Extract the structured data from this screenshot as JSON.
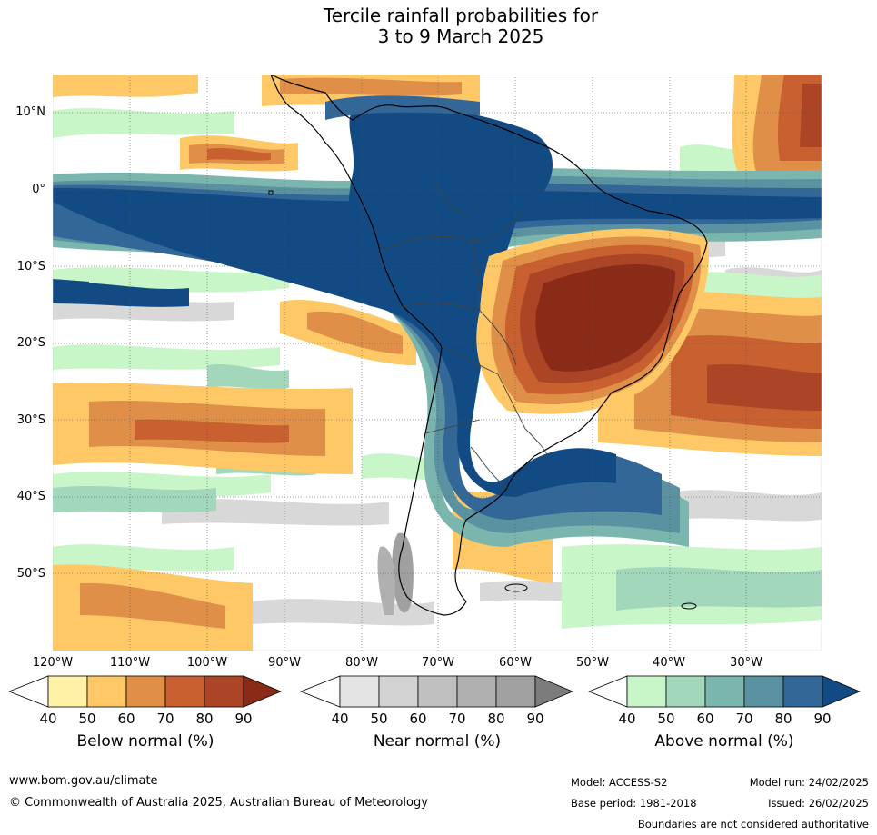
{
  "title": {
    "line1": "Tercile rainfall probabilities for",
    "line2": "3 to 9 March 2025"
  },
  "map": {
    "lat_labels": [
      "10°N",
      "0°",
      "10°S",
      "20°S",
      "30°S",
      "40°S",
      "50°S"
    ],
    "lon_labels": [
      "120°W",
      "110°W",
      "100°W",
      "90°W",
      "80°W",
      "70°W",
      "60°W",
      "50°W",
      "40°W",
      "30°W"
    ]
  },
  "legends": [
    {
      "caption": "Below normal (%)",
      "ticks": [
        "40",
        "50",
        "60",
        "70",
        "80",
        "90"
      ],
      "colors": [
        "#fff1a6",
        "#fdc865",
        "#df8f47",
        "#c8612f",
        "#ab4525",
        "#8a2b17"
      ]
    },
    {
      "caption": "Near normal (%)",
      "ticks": [
        "40",
        "50",
        "60",
        "70",
        "80",
        "90"
      ],
      "colors": [
        "#e4e4e4",
        "#d2d2d2",
        "#c0c0c0",
        "#b0b0b0",
        "#a0a0a0",
        "#7c7c7c"
      ]
    },
    {
      "caption": "Above normal (%)",
      "ticks": [
        "40",
        "50",
        "60",
        "70",
        "80",
        "90"
      ],
      "colors": [
        "#c8f6c8",
        "#a2d7bb",
        "#7ab6ae",
        "#5a92a2",
        "#336797",
        "#124a83"
      ]
    }
  ],
  "footer": {
    "website": "www.bom.gov.au/climate",
    "copyright": "© Commonwealth of Australia 2025, Australian Bureau of Meteorology",
    "model": "Model: ACCESS-S2",
    "base_period": "Base period: 1981-2018",
    "model_run": "Model run: 24/02/2025",
    "issued": "Issued: 26/02/2025",
    "disclaimer": "Boundaries are not considered authoritative"
  }
}
